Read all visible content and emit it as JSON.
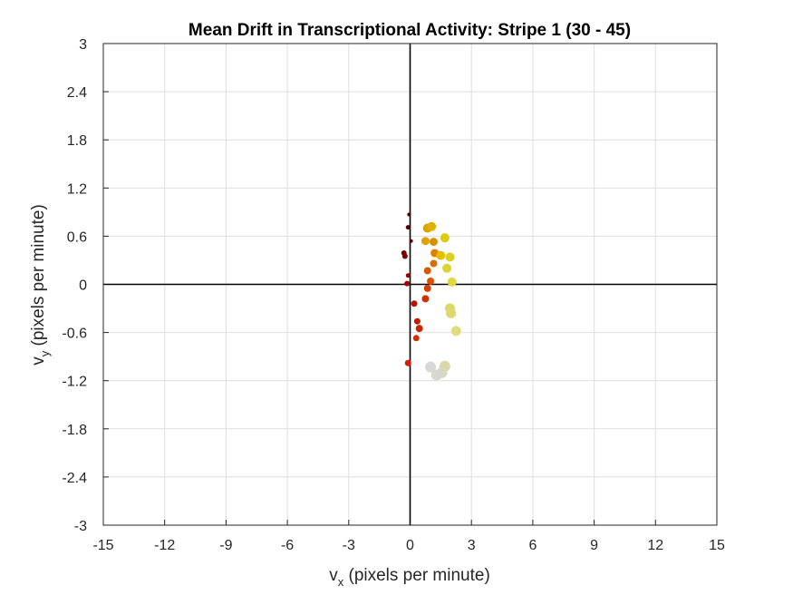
{
  "chart_data": {
    "type": "scatter",
    "title": "Mean Drift in Transcriptional Activity: Stripe 1 (30 - 45)",
    "xlabel": {
      "main": "v",
      "sub": "x",
      "rest": " (pixels per minute)"
    },
    "ylabel": {
      "main": "v",
      "sub": "y",
      "rest": " (pixels per minute)"
    },
    "xlim": [
      -15,
      15
    ],
    "ylim": [
      -3,
      3
    ],
    "xticks": [
      -15,
      -12,
      -9,
      -6,
      -3,
      0,
      3,
      6,
      9,
      12,
      15
    ],
    "yticks": [
      -3,
      -2.4,
      -1.8,
      -1.2,
      -0.6,
      0,
      0.6,
      1.2,
      1.8,
      2.4,
      3
    ],
    "xtick_labels": [
      "-15",
      "-12",
      "-9",
      "-6",
      "-3",
      "0",
      "3",
      "6",
      "9",
      "12",
      "15"
    ],
    "ytick_labels": [
      "-3",
      "-2.4",
      "-1.8",
      "-1.2",
      "-0.6",
      "0",
      "0.6",
      "1.2",
      "1.8",
      "2.4",
      "3"
    ],
    "grid": true,
    "reference_lines": {
      "x": 0,
      "y": 0,
      "color": "#000000"
    },
    "points": [
      {
        "x": -0.05,
        "y": 0.87,
        "color": "#4a0000",
        "size": 2
      },
      {
        "x": -0.1,
        "y": 0.71,
        "color": "#5a0000",
        "size": 2.5
      },
      {
        "x": 0.05,
        "y": 0.54,
        "color": "#6a0000",
        "size": 2
      },
      {
        "x": -0.3,
        "y": 0.39,
        "color": "#7a0000",
        "size": 3
      },
      {
        "x": -0.25,
        "y": 0.35,
        "color": "#800000",
        "size": 3
      },
      {
        "x": -0.1,
        "y": 0.11,
        "color": "#990000",
        "size": 2.5
      },
      {
        "x": -0.15,
        "y": 0.01,
        "color": "#aa0000",
        "size": 3
      },
      {
        "x": 0.2,
        "y": -0.24,
        "color": "#bb1100",
        "size": 3.5
      },
      {
        "x": 0.35,
        "y": -0.46,
        "color": "#c41a00",
        "size": 3.5
      },
      {
        "x": 0.45,
        "y": -0.55,
        "color": "#cc2400",
        "size": 4
      },
      {
        "x": 0.3,
        "y": -0.67,
        "color": "#d42e00",
        "size": 3.5
      },
      {
        "x": -0.1,
        "y": -0.98,
        "color": "#dd1a00",
        "size": 3.5
      },
      {
        "x": 0.75,
        "y": -0.18,
        "color": "#cc3300",
        "size": 4
      },
      {
        "x": 0.85,
        "y": -0.05,
        "color": "#d44000",
        "size": 4
      },
      {
        "x": 1.0,
        "y": 0.04,
        "color": "#dd5000",
        "size": 4
      },
      {
        "x": 0.85,
        "y": 0.17,
        "color": "#d45a00",
        "size": 4
      },
      {
        "x": 1.15,
        "y": 0.26,
        "color": "#dd6a00",
        "size": 4
      },
      {
        "x": 1.2,
        "y": 0.39,
        "color": "#e07f00",
        "size": 4.5
      },
      {
        "x": 1.15,
        "y": 0.53,
        "color": "#d89000",
        "size": 4.5
      },
      {
        "x": 0.75,
        "y": 0.54,
        "color": "#e0a000",
        "size": 4.5
      },
      {
        "x": 0.85,
        "y": 0.7,
        "color": "#dca400",
        "size": 5
      },
      {
        "x": 1.05,
        "y": 0.72,
        "color": "#e0b000",
        "size": 5
      },
      {
        "x": 1.5,
        "y": 0.36,
        "color": "#e2c000",
        "size": 5
      },
      {
        "x": 1.7,
        "y": 0.58,
        "color": "#dccc10",
        "size": 5
      },
      {
        "x": 1.95,
        "y": 0.34,
        "color": "#dcd020",
        "size": 5
      },
      {
        "x": 1.8,
        "y": 0.2,
        "color": "#dcd430",
        "size": 5
      },
      {
        "x": 2.05,
        "y": 0.03,
        "color": "#e0d840",
        "size": 5
      },
      {
        "x": 1.95,
        "y": -0.3,
        "color": "#dcd860",
        "size": 5.5
      },
      {
        "x": 2.0,
        "y": -0.36,
        "color": "#ddd870",
        "size": 5.5
      },
      {
        "x": 2.25,
        "y": -0.58,
        "color": "#e0dc80",
        "size": 5.5
      },
      {
        "x": 1.7,
        "y": -1.02,
        "color": "#d8d8a8",
        "size": 6
      },
      {
        "x": 1.55,
        "y": -1.1,
        "color": "#d8d8c0",
        "size": 6
      },
      {
        "x": 1.3,
        "y": -1.13,
        "color": "#d8d8d0",
        "size": 6
      },
      {
        "x": 1.0,
        "y": -1.03,
        "color": "#d8d8d8",
        "size": 6
      }
    ]
  }
}
